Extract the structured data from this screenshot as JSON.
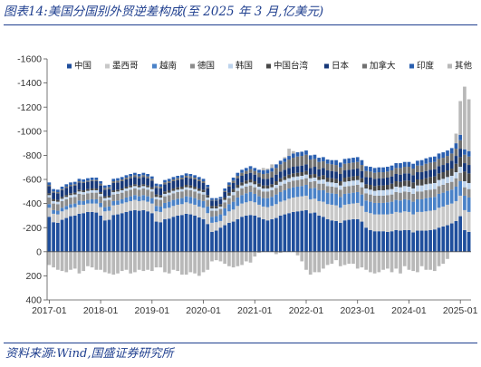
{
  "title": "图表14:美国分国别外贸逆差构成(至 2025 年 3 月,亿美元)",
  "source": "资料来源:Wind,国盛证券研究所",
  "chart_data": {
    "type": "bar",
    "stacked": true,
    "title": "美国分国别外贸逆差构成(至 2025 年 3 月,亿美元)",
    "xlabel": "",
    "ylabel": "",
    "y_axis_inverted": true,
    "ylim": [
      -1600,
      400
    ],
    "yticks": [
      -1600,
      -1400,
      -1200,
      -1000,
      -800,
      -600,
      -400,
      -200,
      0,
      200,
      400
    ],
    "ytick_labels": [
      "-1600",
      "-1400",
      "-1200",
      "-1000",
      "-800",
      "-600",
      "-400",
      "-200",
      "0",
      "200",
      "400"
    ],
    "xtick_labels": [
      "2017-01",
      "2018-01",
      "2019-01",
      "2020-01",
      "2021-01",
      "2022-01",
      "2023-01",
      "2024-01",
      "2025-01"
    ],
    "start_month": "2017-01",
    "end_month": "2025-03",
    "legend_position": "top",
    "grid": false,
    "series": [
      {
        "name": "中国",
        "color": "#1f4e9c",
        "values": [
          -290,
          -245,
          -240,
          -265,
          -280,
          -295,
          -300,
          -315,
          -320,
          -330,
          -330,
          -325,
          -300,
          -260,
          -265,
          -305,
          -310,
          -320,
          -330,
          -340,
          -345,
          -340,
          -345,
          -335,
          -320,
          -250,
          -245,
          -270,
          -275,
          -290,
          -300,
          -305,
          -315,
          -310,
          -300,
          -285,
          -270,
          -230,
          -165,
          -175,
          -200,
          -220,
          -240,
          -250,
          -270,
          -290,
          -300,
          -305,
          -300,
          -285,
          -270,
          -260,
          -270,
          -280,
          -300,
          -310,
          -320,
          -330,
          -335,
          -340,
          -345,
          -320,
          -325,
          -300,
          -290,
          -270,
          -260,
          -255,
          -240,
          -260,
          -265,
          -270,
          -270,
          -250,
          -200,
          -180,
          -170,
          -170,
          -170,
          -165,
          -170,
          -180,
          -175,
          -180,
          -180,
          -160,
          -175,
          -175,
          -175,
          -180,
          -185,
          -200,
          -210,
          -220,
          -235,
          -255,
          -295,
          -180,
          -165
        ]
      },
      {
        "name": "墨西哥",
        "color": "#c8c8c8",
        "values": [
          -75,
          -70,
          -70,
          -70,
          -70,
          -70,
          -70,
          -75,
          -70,
          -70,
          -70,
          -75,
          -70,
          -75,
          -75,
          -80,
          -80,
          -80,
          -80,
          -80,
          -85,
          -80,
          -80,
          -80,
          -80,
          -85,
          -85,
          -90,
          -90,
          -90,
          -90,
          -90,
          -95,
          -90,
          -90,
          -90,
          -95,
          -90,
          -75,
          -70,
          -55,
          -80,
          -95,
          -100,
          -110,
          -110,
          -110,
          -115,
          -110,
          -105,
          -105,
          -110,
          -110,
          -115,
          -115,
          -115,
          -120,
          -120,
          -120,
          -120,
          -120,
          -115,
          -115,
          -120,
          -125,
          -125,
          -130,
          -130,
          -125,
          -130,
          -130,
          -130,
          -135,
          -130,
          -130,
          -140,
          -140,
          -140,
          -140,
          -145,
          -145,
          -150,
          -150,
          -155,
          -150,
          -150,
          -155,
          -155,
          -160,
          -160,
          -160,
          -165,
          -165,
          -170,
          -165,
          -165,
          -170,
          -165,
          -165
        ]
      },
      {
        "name": "越南",
        "color": "#4a82c8",
        "values": [
          -30,
          -30,
          -30,
          -30,
          -30,
          -30,
          -30,
          -35,
          -30,
          -30,
          -35,
          -35,
          -35,
          -35,
          -35,
          -35,
          -35,
          -35,
          -40,
          -40,
          -40,
          -40,
          -45,
          -45,
          -45,
          -45,
          -45,
          -45,
          -50,
          -50,
          -50,
          -50,
          -50,
          -55,
          -55,
          -55,
          -55,
          -55,
          -50,
          -50,
          -55,
          -60,
          -60,
          -65,
          -70,
          -70,
          -75,
          -75,
          -70,
          -70,
          -70,
          -75,
          -75,
          -80,
          -80,
          -85,
          -85,
          -85,
          -85,
          -85,
          -90,
          -90,
          -90,
          -90,
          -95,
          -95,
          -95,
          -95,
          -90,
          -90,
          -90,
          -90,
          -90,
          -95,
          -95,
          -95,
          -95,
          -95,
          -95,
          -100,
          -100,
          -100,
          -100,
          -100,
          -100,
          -105,
          -105,
          -105,
          -110,
          -110,
          -110,
          -115,
          -115,
          -115,
          -115,
          -120,
          -120,
          -120,
          -120
        ]
      },
      {
        "name": "德国",
        "color": "#8c8c8c",
        "values": [
          -55,
          -55,
          -55,
          -55,
          -55,
          -55,
          -55,
          -55,
          -55,
          -55,
          -55,
          -55,
          -55,
          -55,
          -55,
          -55,
          -55,
          -55,
          -55,
          -55,
          -55,
          -55,
          -55,
          -55,
          -55,
          -55,
          -55,
          -55,
          -55,
          -55,
          -55,
          -55,
          -55,
          -55,
          -55,
          -55,
          -55,
          -55,
          -50,
          -45,
          -45,
          -50,
          -50,
          -55,
          -55,
          -55,
          -55,
          -55,
          -55,
          -55,
          -55,
          -55,
          -55,
          -55,
          -55,
          -55,
          -55,
          -55,
          -55,
          -55,
          -55,
          -55,
          -55,
          -55,
          -55,
          -55,
          -55,
          -55,
          -60,
          -60,
          -60,
          -60,
          -60,
          -60,
          -60,
          -60,
          -60,
          -60,
          -60,
          -60,
          -60,
          -65,
          -65,
          -65,
          -65,
          -65,
          -65,
          -65,
          -65,
          -65,
          -65,
          -65,
          -65,
          -65,
          -65,
          -70,
          -70,
          -70,
          -70
        ]
      },
      {
        "name": "韩国",
        "color": "#bdd3ec",
        "values": [
          -20,
          -20,
          -20,
          -20,
          -20,
          -20,
          -20,
          -20,
          -20,
          -20,
          -20,
          -20,
          -20,
          -20,
          -20,
          -20,
          -20,
          -20,
          -20,
          -20,
          -20,
          -20,
          -20,
          -20,
          -20,
          -20,
          -20,
          -20,
          -20,
          -20,
          -20,
          -20,
          -20,
          -20,
          -20,
          -20,
          -20,
          -20,
          -20,
          -20,
          -20,
          -20,
          -20,
          -25,
          -25,
          -25,
          -25,
          -25,
          -25,
          -25,
          -25,
          -25,
          -25,
          -25,
          -30,
          -30,
          -30,
          -30,
          -30,
          -30,
          -30,
          -30,
          -30,
          -30,
          -35,
          -35,
          -35,
          -35,
          -35,
          -40,
          -40,
          -40,
          -40,
          -40,
          -40,
          -40,
          -40,
          -45,
          -45,
          -45,
          -45,
          -45,
          -45,
          -45,
          -45,
          -45,
          -50,
          -50,
          -50,
          -50,
          -50,
          -50,
          -50,
          -50,
          -50,
          -50,
          -50,
          -50,
          -50
        ]
      },
      {
        "name": "中国台湾",
        "color": "#474747",
        "values": [
          -15,
          -15,
          -15,
          -15,
          -15,
          -15,
          -15,
          -15,
          -15,
          -15,
          -15,
          -15,
          -15,
          -15,
          -15,
          -15,
          -15,
          -15,
          -15,
          -15,
          -15,
          -15,
          -15,
          -15,
          -15,
          -20,
          -20,
          -20,
          -20,
          -20,
          -20,
          -20,
          -20,
          -20,
          -20,
          -20,
          -20,
          -20,
          -20,
          -20,
          -20,
          -20,
          -25,
          -25,
          -25,
          -25,
          -25,
          -25,
          -25,
          -25,
          -25,
          -25,
          -25,
          -30,
          -30,
          -30,
          -30,
          -30,
          -30,
          -30,
          -30,
          -30,
          -30,
          -30,
          -35,
          -35,
          -35,
          -35,
          -35,
          -35,
          -35,
          -35,
          -35,
          -35,
          -35,
          -40,
          -40,
          -40,
          -40,
          -40,
          -45,
          -45,
          -45,
          -45,
          -50,
          -50,
          -50,
          -50,
          -50,
          -55,
          -55,
          -55,
          -55,
          -55,
          -60,
          -70,
          -80,
          -80,
          -80
        ]
      },
      {
        "name": "日本",
        "color": "#163778",
        "values": [
          -60,
          -55,
          -55,
          -55,
          -60,
          -60,
          -60,
          -60,
          -60,
          -60,
          -60,
          -60,
          -55,
          -55,
          -55,
          -60,
          -60,
          -60,
          -60,
          -60,
          -60,
          -60,
          -60,
          -60,
          -55,
          -55,
          -55,
          -60,
          -60,
          -60,
          -60,
          -60,
          -60,
          -60,
          -60,
          -60,
          -55,
          -55,
          -45,
          -45,
          -40,
          -45,
          -50,
          -50,
          -55,
          -55,
          -55,
          -55,
          -55,
          -55,
          -55,
          -55,
          -55,
          -55,
          -55,
          -55,
          -55,
          -55,
          -55,
          -55,
          -55,
          -55,
          -60,
          -60,
          -60,
          -60,
          -60,
          -60,
          -60,
          -60,
          -60,
          -60,
          -60,
          -60,
          -60,
          -60,
          -60,
          -60,
          -60,
          -60,
          -60,
          -60,
          -60,
          -60,
          -60,
          -60,
          -60,
          -60,
          -60,
          -60,
          -60,
          -60,
          -60,
          -60,
          -65,
          -65,
          -70,
          -70,
          -70
        ]
      },
      {
        "name": "加拿大",
        "color": "#707070",
        "values": [
          -10,
          -10,
          -10,
          -10,
          -10,
          -10,
          -10,
          -10,
          -10,
          -10,
          -10,
          -10,
          -15,
          -15,
          -15,
          -15,
          -15,
          -15,
          -15,
          -15,
          -15,
          -15,
          -15,
          -15,
          -15,
          -15,
          -15,
          -15,
          -15,
          -15,
          -15,
          -15,
          -15,
          -15,
          -15,
          -15,
          -15,
          -10,
          -5,
          -5,
          -5,
          -10,
          -15,
          -20,
          -20,
          -25,
          -25,
          -30,
          -30,
          -35,
          -40,
          -45,
          -50,
          -55,
          -60,
          -65,
          -70,
          -75,
          -80,
          -80,
          -80,
          -70,
          -65,
          -60,
          -55,
          -55,
          -55,
          -55,
          -55,
          -55,
          -55,
          -55,
          -55,
          -50,
          -50,
          -50,
          -50,
          -50,
          -50,
          -50,
          -50,
          -50,
          -55,
          -55,
          -55,
          -55,
          -55,
          -55,
          -60,
          -60,
          -60,
          -60,
          -60,
          -60,
          -60,
          -60,
          -70,
          -70,
          -70
        ]
      },
      {
        "name": "印度",
        "color": "#2a5fb0",
        "values": [
          -20,
          -20,
          -20,
          -20,
          -20,
          -20,
          -20,
          -20,
          -20,
          -20,
          -20,
          -20,
          -20,
          -20,
          -20,
          -20,
          -20,
          -20,
          -20,
          -20,
          -20,
          -20,
          -20,
          -20,
          -20,
          -20,
          -20,
          -20,
          -20,
          -20,
          -20,
          -20,
          -20,
          -20,
          -20,
          -20,
          -20,
          -20,
          -15,
          -15,
          -15,
          -20,
          -20,
          -25,
          -25,
          -25,
          -25,
          -25,
          -25,
          -25,
          -30,
          -30,
          -30,
          -30,
          -30,
          -30,
          -30,
          -35,
          -35,
          -35,
          -35,
          -35,
          -35,
          -35,
          -35,
          -35,
          -35,
          -40,
          -40,
          -40,
          -40,
          -40,
          -40,
          -40,
          -40,
          -40,
          -40,
          -40,
          -40,
          -40,
          -40,
          -40,
          -40,
          -40,
          -40,
          -40,
          -40,
          -45,
          -45,
          -45,
          -45,
          -45,
          -45,
          -45,
          -45,
          -45,
          -45,
          -45,
          -45
        ]
      },
      {
        "name": "其他",
        "color": "#b8b8b8",
        "values": [
          110,
          130,
          150,
          160,
          170,
          150,
          140,
          180,
          160,
          120,
          130,
          150,
          150,
          170,
          180,
          190,
          180,
          160,
          150,
          180,
          170,
          150,
          160,
          150,
          160,
          130,
          130,
          170,
          180,
          150,
          160,
          190,
          190,
          170,
          180,
          200,
          170,
          150,
          80,
          70,
          80,
          100,
          120,
          130,
          120,
          110,
          80,
          90,
          40,
          10,
          -20,
          -10,
          -30,
          20,
          10,
          -10,
          -60,
          -20,
          30,
          80,
          150,
          190,
          170,
          170,
          140,
          110,
          100,
          70,
          120,
          110,
          100,
          100,
          140,
          130,
          150,
          170,
          180,
          170,
          150,
          140,
          170,
          140,
          180,
          120,
          150,
          160,
          170,
          120,
          150,
          150,
          160,
          120,
          100,
          60,
          0,
          -80,
          -280,
          -520,
          -430
        ]
      }
    ]
  }
}
